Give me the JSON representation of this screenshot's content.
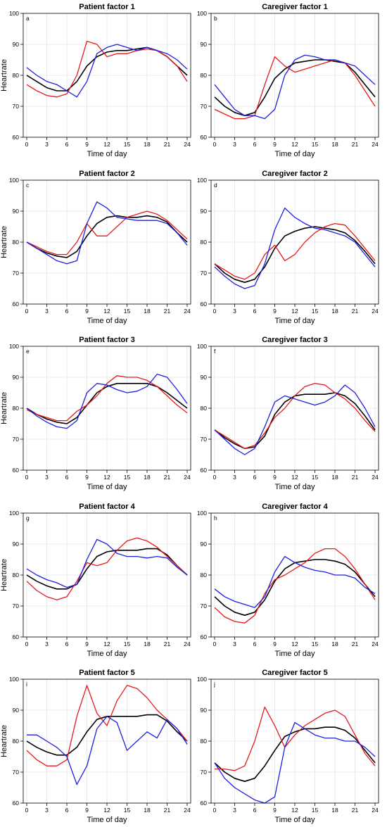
{
  "figure": {
    "y_axis_label": "Heartrate",
    "x_axis_label": "Time of day"
  },
  "colors": {
    "black": "#000000",
    "red": "#e41a1c",
    "blue": "#1f1fe0",
    "grid": "#dddddd"
  },
  "chart_data": [
    {
      "type": "line",
      "panel": "a",
      "title": "Patient factor 1",
      "xlabel": "Time of day",
      "ylabel": "Heartrate",
      "xlim": [
        0,
        24
      ],
      "ylim": [
        60,
        100
      ],
      "xticks": [
        0,
        3,
        6,
        9,
        12,
        15,
        18,
        21,
        24
      ],
      "yticks": [
        60,
        70,
        80,
        90,
        100
      ],
      "grid": true,
      "x": [
        0,
        1.5,
        3,
        4.5,
        6,
        7.5,
        9,
        10.5,
        12,
        13.5,
        15,
        16.5,
        18,
        19.5,
        21,
        22.5,
        24
      ],
      "series": [
        {
          "color": "black",
          "values": [
            80,
            78,
            76,
            75,
            75,
            78,
            83,
            86,
            87.5,
            88,
            88,
            88.5,
            89,
            88,
            86,
            83,
            80
          ]
        },
        {
          "color": "red",
          "values": [
            77,
            75,
            73.5,
            73,
            74,
            80,
            91,
            90,
            86,
            87,
            87,
            88,
            88.5,
            88,
            86,
            83,
            78
          ]
        },
        {
          "color": "blue",
          "values": [
            82.5,
            80,
            78,
            77,
            75,
            73,
            78,
            87,
            89,
            90,
            89,
            88,
            89,
            88,
            87,
            85,
            82
          ]
        }
      ]
    },
    {
      "type": "line",
      "panel": "b",
      "title": "Caregiver factor 1",
      "xlabel": "Time of day",
      "ylabel": "",
      "xlim": [
        0,
        24
      ],
      "ylim": [
        60,
        100
      ],
      "xticks": [
        0,
        3,
        6,
        9,
        12,
        15,
        18,
        21,
        24
      ],
      "yticks": [
        60,
        70,
        80,
        90,
        100
      ],
      "grid": true,
      "x": [
        0,
        1.5,
        3,
        4.5,
        6,
        7.5,
        9,
        10.5,
        12,
        13.5,
        15,
        16.5,
        18,
        19.5,
        21,
        22.5,
        24
      ],
      "series": [
        {
          "color": "black",
          "values": [
            73,
            70,
            68,
            67,
            68,
            73,
            79,
            82,
            84,
            84.5,
            85,
            85,
            84.5,
            84,
            81,
            77,
            73
          ]
        },
        {
          "color": "red",
          "values": [
            69,
            67.5,
            66,
            66,
            67,
            77,
            86,
            83,
            81,
            82,
            83,
            84,
            85,
            84,
            80,
            75,
            70
          ]
        },
        {
          "color": "blue",
          "values": [
            77,
            73,
            69,
            67,
            67,
            66,
            69,
            80,
            85,
            86.5,
            86,
            85,
            85,
            84,
            83,
            80,
            77
          ]
        }
      ]
    },
    {
      "type": "line",
      "panel": "c",
      "title": "Patient factor 2",
      "xlabel": "Time of day",
      "ylabel": "Heartrate",
      "xlim": [
        0,
        24
      ],
      "ylim": [
        60,
        100
      ],
      "xticks": [
        0,
        3,
        6,
        9,
        12,
        15,
        18,
        21,
        24
      ],
      "yticks": [
        60,
        70,
        80,
        90,
        100
      ],
      "grid": true,
      "x": [
        0,
        1.5,
        3,
        4.5,
        6,
        7.5,
        9,
        10.5,
        12,
        13.5,
        15,
        16.5,
        18,
        19.5,
        21,
        22.5,
        24
      ],
      "series": [
        {
          "color": "black",
          "values": [
            80,
            78,
            76.5,
            75.5,
            75,
            77,
            82,
            86,
            88,
            88.5,
            88,
            88,
            88.5,
            88,
            86.5,
            83,
            80
          ]
        },
        {
          "color": "red",
          "values": [
            80,
            78.5,
            77,
            76,
            76,
            80,
            86,
            82,
            82,
            85,
            88,
            89,
            90,
            89,
            87,
            84,
            81
          ]
        },
        {
          "color": "blue",
          "values": [
            80,
            78,
            76,
            74,
            73,
            74,
            86,
            93,
            91,
            88,
            87.5,
            87,
            87,
            87,
            86,
            83,
            79
          ]
        }
      ]
    },
    {
      "type": "line",
      "panel": "d",
      "title": "Caregiver factor 2",
      "xlabel": "Time of day",
      "ylabel": "",
      "xlim": [
        0,
        24
      ],
      "ylim": [
        60,
        100
      ],
      "xticks": [
        0,
        3,
        6,
        9,
        12,
        15,
        18,
        21,
        24
      ],
      "yticks": [
        60,
        70,
        80,
        90,
        100
      ],
      "grid": true,
      "x": [
        0,
        1.5,
        3,
        4.5,
        6,
        7.5,
        9,
        10.5,
        12,
        13.5,
        15,
        16.5,
        18,
        19.5,
        21,
        22.5,
        24
      ],
      "series": [
        {
          "color": "black",
          "values": [
            73,
            70,
            68,
            67,
            68,
            72,
            78,
            82,
            83.5,
            84.5,
            85,
            84.5,
            84,
            83,
            80.5,
            77,
            73
          ]
        },
        {
          "color": "red",
          "values": [
            73,
            71,
            69,
            68,
            70,
            76,
            79,
            74,
            76,
            80,
            83,
            85,
            86,
            85.5,
            82,
            78,
            74
          ]
        },
        {
          "color": "blue",
          "values": [
            72,
            69,
            66.5,
            65,
            66,
            73,
            84,
            91,
            88,
            86,
            84.5,
            84,
            83,
            82,
            80,
            76,
            72
          ]
        }
      ]
    },
    {
      "type": "line",
      "panel": "e",
      "title": "Patient factor 3",
      "xlabel": "Time of day",
      "ylabel": "Heartrate",
      "xlim": [
        0,
        24
      ],
      "ylim": [
        60,
        100
      ],
      "xticks": [
        0,
        3,
        6,
        9,
        12,
        15,
        18,
        21,
        24
      ],
      "yticks": [
        60,
        70,
        80,
        90,
        100
      ],
      "grid": true,
      "x": [
        0,
        1.5,
        3,
        4.5,
        6,
        7.5,
        9,
        10.5,
        12,
        13.5,
        15,
        16.5,
        18,
        19.5,
        21,
        22.5,
        24
      ],
      "series": [
        {
          "color": "black",
          "values": [
            80,
            78,
            76.5,
            75.5,
            75,
            77,
            81,
            85,
            87,
            88,
            88,
            88,
            88,
            87,
            85,
            82.5,
            80
          ]
        },
        {
          "color": "red",
          "values": [
            79.5,
            78,
            77,
            76,
            76,
            79,
            81,
            84,
            88,
            90.5,
            90,
            90,
            89,
            87,
            84,
            81,
            78.5
          ]
        },
        {
          "color": "blue",
          "values": [
            80,
            77.5,
            75.5,
            74,
            73.5,
            76,
            85,
            88,
            87.5,
            86,
            85,
            85.5,
            87,
            91,
            90,
            86,
            81.5
          ]
        }
      ]
    },
    {
      "type": "line",
      "panel": "f",
      "title": "Caregiver factor 3",
      "xlabel": "Time of day",
      "ylabel": "",
      "xlim": [
        0,
        24
      ],
      "ylim": [
        60,
        100
      ],
      "xticks": [
        0,
        3,
        6,
        9,
        12,
        15,
        18,
        21,
        24
      ],
      "yticks": [
        60,
        70,
        80,
        90,
        100
      ],
      "grid": true,
      "x": [
        0,
        1.5,
        3,
        4.5,
        6,
        7.5,
        9,
        10.5,
        12,
        13.5,
        15,
        16.5,
        18,
        19.5,
        21,
        22.5,
        24
      ],
      "series": [
        {
          "color": "black",
          "values": [
            73,
            70.5,
            68.5,
            67,
            67.5,
            71,
            78,
            82,
            84,
            84.5,
            84.5,
            84.5,
            85,
            84,
            81.5,
            77.5,
            73
          ]
        },
        {
          "color": "red",
          "values": [
            73,
            71,
            69,
            67,
            68,
            72,
            77,
            80,
            84,
            87,
            88,
            87.5,
            85,
            83,
            80,
            76,
            72.5
          ]
        },
        {
          "color": "blue",
          "values": [
            73,
            70,
            67,
            65,
            67,
            74,
            82,
            84,
            83,
            82,
            81,
            82,
            84,
            87.5,
            85,
            80,
            74
          ]
        }
      ]
    },
    {
      "type": "line",
      "panel": "g",
      "title": "Patient factor 4",
      "xlabel": "Time of day",
      "ylabel": "Heartrate",
      "xlim": [
        0,
        24
      ],
      "ylim": [
        60,
        100
      ],
      "xticks": [
        0,
        3,
        6,
        9,
        12,
        15,
        18,
        21,
        24
      ],
      "yticks": [
        60,
        70,
        80,
        90,
        100
      ],
      "grid": true,
      "x": [
        0,
        1.5,
        3,
        4.5,
        6,
        7.5,
        9,
        10.5,
        12,
        13.5,
        15,
        16.5,
        18,
        19.5,
        21,
        22.5,
        24
      ],
      "series": [
        {
          "color": "black",
          "values": [
            80,
            78,
            76.5,
            75.5,
            75.5,
            77,
            82,
            86,
            87.5,
            88,
            88,
            88,
            88.5,
            88.5,
            86.5,
            83,
            80
          ]
        },
        {
          "color": "red",
          "values": [
            78,
            75,
            73,
            72,
            73,
            78,
            84,
            83,
            84,
            88,
            91,
            92,
            91,
            89,
            86,
            83,
            80
          ]
        },
        {
          "color": "blue",
          "values": [
            82,
            80,
            78.5,
            77.5,
            76,
            77,
            85,
            91.5,
            90,
            87,
            86,
            86,
            85.5,
            86,
            85.5,
            82.5,
            80
          ]
        }
      ]
    },
    {
      "type": "line",
      "panel": "h",
      "title": "Caregiver factor 4",
      "xlabel": "Time of day",
      "ylabel": "",
      "xlim": [
        0,
        24
      ],
      "ylim": [
        60,
        100
      ],
      "xticks": [
        0,
        3,
        6,
        9,
        12,
        15,
        18,
        21,
        24
      ],
      "yticks": [
        60,
        70,
        80,
        90,
        100
      ],
      "grid": true,
      "x": [
        0,
        1.5,
        3,
        4.5,
        6,
        7.5,
        9,
        10.5,
        12,
        13.5,
        15,
        16.5,
        18,
        19.5,
        21,
        22.5,
        24
      ],
      "series": [
        {
          "color": "black",
          "values": [
            73,
            70,
            68,
            67,
            68,
            72,
            78,
            82,
            84,
            84.5,
            85,
            85,
            84.5,
            83.5,
            81,
            77,
            73
          ]
        },
        {
          "color": "red",
          "values": [
            69.5,
            66.5,
            65,
            64.5,
            67,
            74,
            78.5,
            80,
            82,
            84,
            87,
            88.5,
            88.5,
            86,
            82,
            77,
            72
          ]
        },
        {
          "color": "blue",
          "values": [
            75.5,
            73,
            71.5,
            70.5,
            69.5,
            73,
            81,
            86,
            84,
            82.5,
            81.5,
            81,
            80,
            80,
            79,
            76,
            74
          ]
        }
      ]
    },
    {
      "type": "line",
      "panel": "i",
      "title": "Patient factor 5",
      "xlabel": "Time of day",
      "ylabel": "Heartrate",
      "xlim": [
        0,
        24
      ],
      "ylim": [
        60,
        100
      ],
      "xticks": [
        0,
        3,
        6,
        9,
        12,
        15,
        18,
        21,
        24
      ],
      "yticks": [
        60,
        70,
        80,
        90,
        100
      ],
      "grid": true,
      "x": [
        0,
        1.5,
        3,
        4.5,
        6,
        7.5,
        9,
        10.5,
        12,
        13.5,
        15,
        16.5,
        18,
        19.5,
        21,
        22.5,
        24
      ],
      "series": [
        {
          "color": "black",
          "values": [
            80,
            78,
            76.5,
            75.5,
            75.5,
            78,
            83,
            87,
            88,
            88,
            88,
            88,
            88.5,
            88.5,
            86.5,
            83,
            80
          ]
        },
        {
          "color": "red",
          "values": [
            77,
            74,
            72,
            72,
            74,
            88,
            98,
            89,
            85,
            93,
            98,
            97,
            94,
            90,
            87,
            84,
            80
          ]
        },
        {
          "color": "blue",
          "values": [
            82,
            82,
            80,
            78,
            75,
            66,
            72,
            84,
            88,
            86,
            77,
            80,
            83,
            81,
            87,
            84,
            79
          ]
        }
      ]
    },
    {
      "type": "line",
      "panel": "j",
      "title": "Caregiver factor 5",
      "xlabel": "Time of day",
      "ylabel": "",
      "xlim": [
        0,
        24
      ],
      "ylim": [
        60,
        100
      ],
      "xticks": [
        0,
        3,
        6,
        9,
        12,
        15,
        18,
        21,
        24
      ],
      "yticks": [
        60,
        70,
        80,
        90,
        100
      ],
      "grid": true,
      "x": [
        0,
        1.5,
        3,
        4.5,
        6,
        7.5,
        9,
        10.5,
        12,
        13.5,
        15,
        16.5,
        18,
        19.5,
        21,
        22.5,
        24
      ],
      "series": [
        {
          "color": "black",
          "values": [
            73,
            70,
            68,
            67,
            68,
            72,
            77,
            81.5,
            83,
            84,
            84,
            84.5,
            84.5,
            83.5,
            81,
            77,
            73
          ]
        },
        {
          "color": "red",
          "values": [
            71,
            71,
            70.5,
            72,
            80,
            91,
            85,
            78,
            82,
            85,
            87,
            89,
            90,
            88,
            82,
            76,
            72
          ]
        },
        {
          "color": "blue",
          "values": [
            73,
            68,
            65,
            63,
            61,
            60,
            62,
            78,
            86,
            84,
            82,
            81,
            81,
            80,
            80,
            78,
            75
          ]
        }
      ]
    }
  ]
}
